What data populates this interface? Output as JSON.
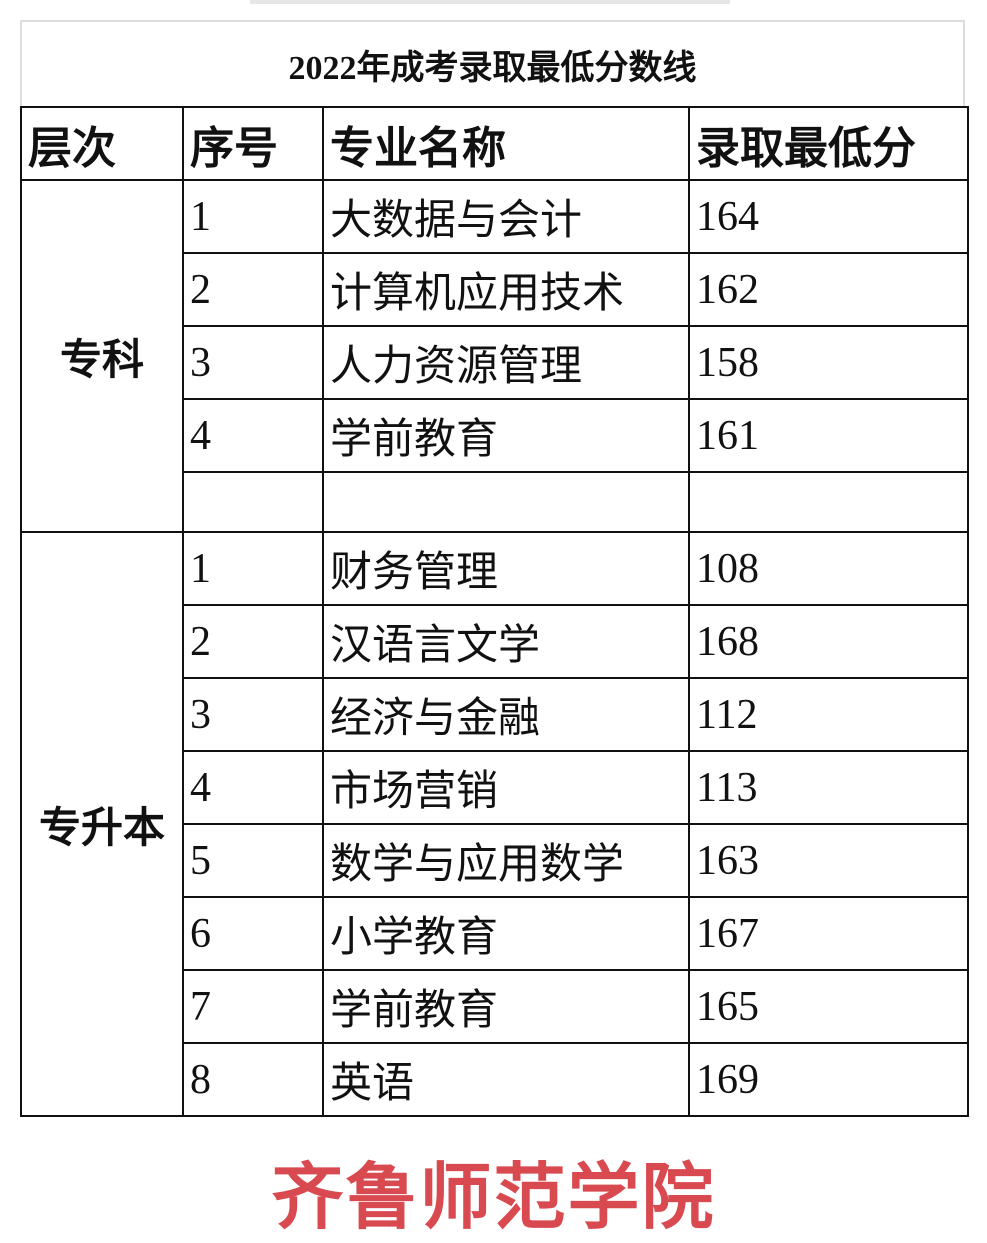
{
  "title": "2022年成考录取最低分数线",
  "headers": [
    "层次",
    "序号",
    "专业名称",
    "录取最低分"
  ],
  "groups": [
    {
      "level": "专科",
      "rows": [
        {
          "no": "1",
          "major": "大数据与会计",
          "score": "164"
        },
        {
          "no": "2",
          "major": "计算机应用技术",
          "score": "162"
        },
        {
          "no": "3",
          "major": "人力资源管理",
          "score": "158"
        },
        {
          "no": "4",
          "major": "学前教育",
          "score": "161"
        }
      ]
    },
    {
      "level": "专升本",
      "rows": [
        {
          "no": "1",
          "major": "财务管理",
          "score": "108"
        },
        {
          "no": "2",
          "major": "汉语言文学",
          "score": "168"
        },
        {
          "no": "3",
          "major": "经济与金融",
          "score": "112"
        },
        {
          "no": "4",
          "major": "市场营销",
          "score": "113"
        },
        {
          "no": "5",
          "major": "数学与应用数学",
          "score": "163"
        },
        {
          "no": "6",
          "major": "小学教育",
          "score": "167"
        },
        {
          "no": "7",
          "major": "学前教育",
          "score": "165"
        },
        {
          "no": "8",
          "major": "英语",
          "score": "169"
        }
      ]
    }
  ],
  "footer": {
    "school": "齐鲁师范学院",
    "color": "#d94a50"
  }
}
